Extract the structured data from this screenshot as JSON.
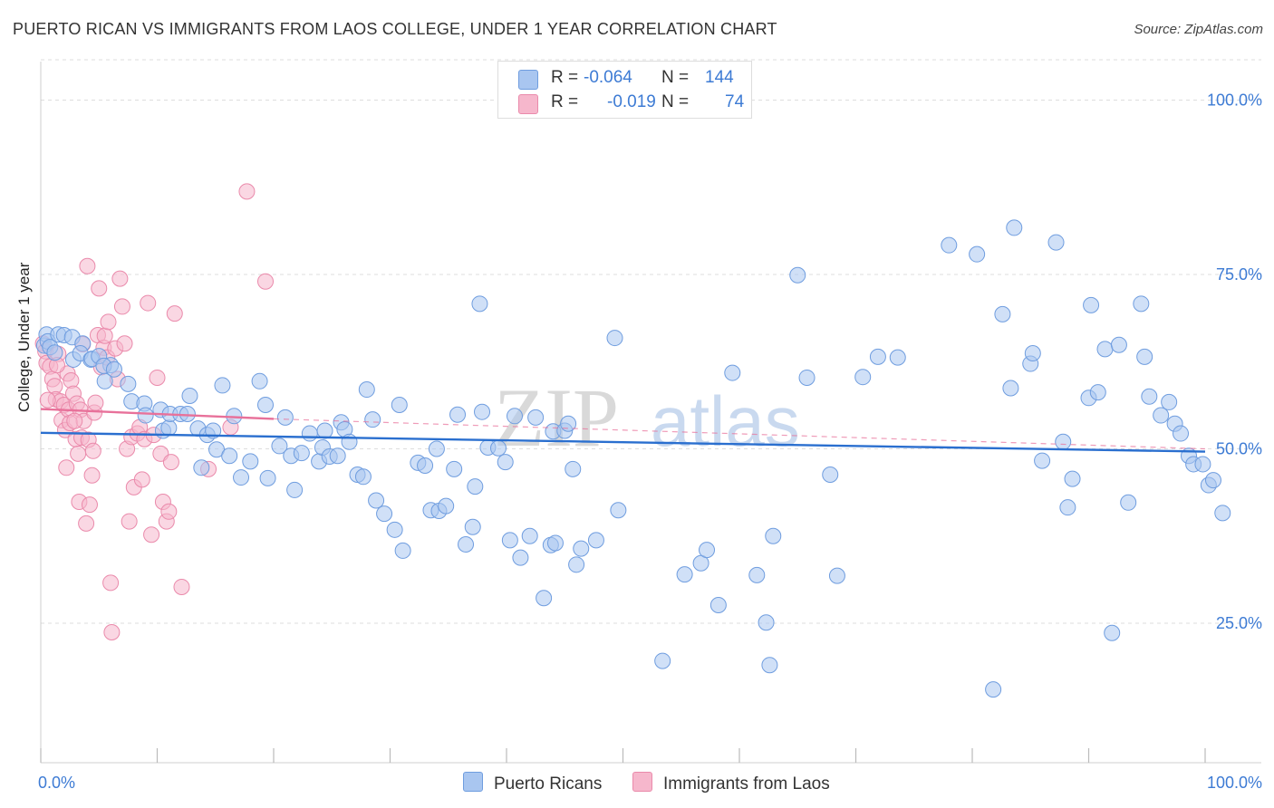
{
  "title": "PUERTO RICAN VS IMMIGRANTS FROM LAOS COLLEGE, UNDER 1 YEAR CORRELATION CHART",
  "source": "Source: ZipAtlas.com",
  "watermark": {
    "zip": "ZIP",
    "atlas": "atlas"
  },
  "legend": {
    "rows": [
      {
        "r_label": "R =",
        "r_value": "-0.064",
        "n_label": "N =",
        "n_value": "144"
      },
      {
        "r_label": "R =",
        "r_value": "-0.019",
        "n_label": "N =",
        "n_value": "74"
      }
    ]
  },
  "chart_data": {
    "type": "scatter",
    "title": "PUERTO RICAN VS IMMIGRANTS FROM LAOS COLLEGE, UNDER 1 YEAR CORRELATION CHART",
    "xlabel": "",
    "ylabel": "College, Under 1 year",
    "xlim": [
      0,
      100
    ],
    "ylim": [
      5,
      105
    ],
    "x_tick_labels": [
      "0.0%",
      "100.0%"
    ],
    "y_ticks": [
      25,
      50,
      75,
      100
    ],
    "y_tick_labels": [
      "25.0%",
      "50.0%",
      "75.0%",
      "100.0%"
    ],
    "colors": {
      "blue_fill": "#a9c6f0",
      "blue_stroke": "#6f9ddf",
      "blue_line": "#2a6fcf",
      "pink_fill": "#f6b7cc",
      "pink_stroke": "#ea8aab",
      "pink_line": "#e8719a",
      "tick_text": "#3d7bd4",
      "grid": "#dddddd"
    },
    "series": [
      {
        "name": "Puerto Ricans",
        "R": -0.064,
        "N": 144,
        "trend": {
          "x0": 0,
          "y0": 52.3,
          "x1": 100,
          "y1": 49.6
        },
        "points": [
          [
            0.3,
            64.8
          ],
          [
            0.5,
            66.4
          ],
          [
            0.6,
            65.4
          ],
          [
            0.8,
            64.6
          ],
          [
            1.2,
            63.8
          ],
          [
            1.5,
            66.4
          ],
          [
            2.0,
            66.3
          ],
          [
            2.7,
            66.0
          ],
          [
            3.6,
            65.1
          ],
          [
            2.8,
            62.8
          ],
          [
            3.4,
            63.7
          ],
          [
            4.3,
            62.8
          ],
          [
            4.4,
            62.9
          ],
          [
            5.0,
            63.3
          ],
          [
            6.0,
            62.0
          ],
          [
            5.4,
            61.9
          ],
          [
            6.3,
            61.4
          ],
          [
            5.5,
            59.7
          ],
          [
            7.5,
            59.3
          ],
          [
            7.8,
            56.8
          ],
          [
            8.9,
            56.5
          ],
          [
            9.0,
            54.8
          ],
          [
            10.3,
            55.6
          ],
          [
            10.5,
            52.6
          ],
          [
            11.0,
            53.0
          ],
          [
            11.1,
            55.0
          ],
          [
            12.0,
            55.0
          ],
          [
            12.6,
            55.0
          ],
          [
            12.8,
            57.6
          ],
          [
            13.5,
            52.9
          ],
          [
            13.8,
            47.3
          ],
          [
            14.3,
            52.0
          ],
          [
            14.8,
            52.6
          ],
          [
            15.1,
            49.9
          ],
          [
            15.6,
            59.1
          ],
          [
            16.2,
            49.0
          ],
          [
            16.6,
            54.7
          ],
          [
            17.2,
            45.9
          ],
          [
            18.0,
            48.2
          ],
          [
            18.8,
            59.7
          ],
          [
            19.3,
            56.3
          ],
          [
            19.5,
            45.8
          ],
          [
            20.5,
            50.4
          ],
          [
            21.0,
            54.5
          ],
          [
            21.5,
            49.0
          ],
          [
            21.8,
            44.1
          ],
          [
            22.4,
            49.4
          ],
          [
            23.1,
            52.2
          ],
          [
            23.9,
            48.2
          ],
          [
            24.2,
            50.2
          ],
          [
            24.4,
            52.6
          ],
          [
            24.8,
            48.9
          ],
          [
            25.5,
            49.0
          ],
          [
            25.8,
            53.8
          ],
          [
            26.1,
            52.8
          ],
          [
            26.5,
            51.0
          ],
          [
            27.2,
            46.3
          ],
          [
            27.7,
            46.0
          ],
          [
            28.0,
            58.5
          ],
          [
            28.5,
            54.2
          ],
          [
            28.8,
            42.6
          ],
          [
            29.5,
            40.7
          ],
          [
            30.4,
            38.4
          ],
          [
            30.8,
            56.3
          ],
          [
            31.1,
            35.4
          ],
          [
            32.4,
            48.0
          ],
          [
            33.0,
            47.6
          ],
          [
            33.5,
            41.2
          ],
          [
            34.0,
            50.0
          ],
          [
            34.2,
            41.1
          ],
          [
            34.8,
            41.8
          ],
          [
            35.5,
            47.1
          ],
          [
            35.8,
            54.9
          ],
          [
            36.5,
            36.3
          ],
          [
            37.1,
            38.8
          ],
          [
            37.3,
            44.6
          ],
          [
            37.7,
            70.8
          ],
          [
            37.9,
            55.3
          ],
          [
            38.4,
            50.2
          ],
          [
            39.3,
            50.1
          ],
          [
            39.9,
            48.1
          ],
          [
            40.3,
            36.9
          ],
          [
            40.7,
            54.7
          ],
          [
            41.2,
            34.4
          ],
          [
            42.0,
            37.5
          ],
          [
            42.5,
            54.5
          ],
          [
            43.2,
            28.6
          ],
          [
            44.0,
            52.5
          ],
          [
            43.8,
            36.2
          ],
          [
            44.2,
            36.5
          ],
          [
            45.0,
            52.6
          ],
          [
            45.3,
            53.6
          ],
          [
            45.7,
            47.1
          ],
          [
            46.0,
            33.4
          ],
          [
            46.4,
            35.7
          ],
          [
            47.7,
            36.9
          ],
          [
            49.6,
            41.2
          ],
          [
            49.3,
            65.9
          ],
          [
            53.4,
            19.6
          ],
          [
            55.3,
            32.0
          ],
          [
            56.7,
            33.6
          ],
          [
            57.2,
            35.5
          ],
          [
            58.2,
            27.6
          ],
          [
            59.4,
            60.9
          ],
          [
            61.5,
            31.9
          ],
          [
            62.3,
            25.1
          ],
          [
            62.6,
            19.0
          ],
          [
            62.9,
            37.5
          ],
          [
            65.0,
            74.9
          ],
          [
            65.8,
            60.2
          ],
          [
            67.8,
            46.3
          ],
          [
            68.4,
            31.8
          ],
          [
            70.6,
            60.3
          ],
          [
            71.9,
            63.2
          ],
          [
            73.6,
            63.1
          ],
          [
            78.0,
            79.2
          ],
          [
            80.4,
            77.9
          ],
          [
            81.8,
            15.5
          ],
          [
            82.6,
            69.3
          ],
          [
            83.3,
            58.7
          ],
          [
            83.6,
            81.7
          ],
          [
            85.0,
            62.2
          ],
          [
            85.2,
            63.7
          ],
          [
            86.0,
            48.3
          ],
          [
            87.2,
            79.6
          ],
          [
            87.8,
            51.0
          ],
          [
            88.2,
            41.6
          ],
          [
            88.6,
            45.7
          ],
          [
            90.0,
            57.3
          ],
          [
            90.2,
            70.6
          ],
          [
            90.8,
            58.1
          ],
          [
            91.4,
            64.3
          ],
          [
            92.6,
            64.9
          ],
          [
            92.0,
            23.6
          ],
          [
            93.4,
            42.3
          ],
          [
            94.5,
            70.8
          ],
          [
            94.8,
            63.2
          ],
          [
            95.2,
            57.5
          ],
          [
            96.2,
            54.8
          ],
          [
            96.9,
            56.7
          ],
          [
            97.4,
            53.6
          ],
          [
            97.9,
            52.2
          ],
          [
            98.6,
            49.0
          ],
          [
            99.0,
            47.8
          ],
          [
            99.8,
            47.8
          ],
          [
            100.3,
            44.8
          ],
          [
            100.7,
            45.5
          ],
          [
            101.5,
            40.8
          ]
        ]
      },
      {
        "name": "Immigrants from Laos",
        "R": -0.019,
        "N": 74,
        "trend": {
          "x0": 0,
          "y0": 55.7,
          "x1": 20,
          "y1": 54.3
        },
        "trend_extension": {
          "x0": 20,
          "y0": 54.3,
          "x1": 100,
          "y1": 50.0
        },
        "points": [
          [
            0.2,
            65.1
          ],
          [
            0.4,
            64.0
          ],
          [
            0.5,
            62.3
          ],
          [
            0.8,
            61.8
          ],
          [
            1.0,
            60.0
          ],
          [
            1.2,
            59.0
          ],
          [
            1.3,
            57.1
          ],
          [
            1.5,
            63.6
          ],
          [
            1.7,
            56.8
          ],
          [
            1.8,
            54.1
          ],
          [
            2.0,
            56.3
          ],
          [
            2.1,
            52.7
          ],
          [
            2.2,
            47.3
          ],
          [
            2.3,
            60.8
          ],
          [
            2.4,
            55.6
          ],
          [
            2.5,
            53.7
          ],
          [
            2.6,
            59.8
          ],
          [
            2.8,
            57.9
          ],
          [
            3.0,
            51.4
          ],
          [
            3.1,
            56.5
          ],
          [
            3.2,
            49.3
          ],
          [
            3.3,
            42.4
          ],
          [
            3.4,
            55.6
          ],
          [
            3.5,
            51.6
          ],
          [
            3.7,
            54.0
          ],
          [
            3.9,
            39.3
          ],
          [
            4.0,
            76.2
          ],
          [
            4.1,
            51.3
          ],
          [
            4.2,
            42.0
          ],
          [
            4.4,
            46.2
          ],
          [
            4.5,
            49.7
          ],
          [
            4.6,
            55.2
          ],
          [
            4.7,
            56.6
          ],
          [
            4.9,
            66.3
          ],
          [
            5.0,
            73.0
          ],
          [
            5.2,
            61.7
          ],
          [
            5.4,
            64.5
          ],
          [
            5.5,
            66.2
          ],
          [
            5.7,
            63.1
          ],
          [
            5.8,
            68.2
          ],
          [
            6.0,
            30.8
          ],
          [
            6.1,
            23.7
          ],
          [
            6.4,
            64.4
          ],
          [
            6.8,
            74.4
          ],
          [
            7.0,
            70.4
          ],
          [
            7.2,
            65.1
          ],
          [
            7.4,
            50.0
          ],
          [
            7.6,
            39.6
          ],
          [
            7.8,
            51.7
          ],
          [
            8.0,
            44.5
          ],
          [
            8.3,
            52.2
          ],
          [
            8.5,
            53.1
          ],
          [
            8.7,
            45.6
          ],
          [
            8.9,
            51.4
          ],
          [
            9.2,
            70.9
          ],
          [
            9.5,
            37.7
          ],
          [
            9.7,
            52.0
          ],
          [
            10.0,
            60.2
          ],
          [
            10.3,
            49.3
          ],
          [
            10.5,
            42.4
          ],
          [
            10.8,
            39.6
          ],
          [
            11.0,
            41.0
          ],
          [
            11.2,
            48.1
          ],
          [
            11.5,
            69.4
          ],
          [
            12.1,
            30.2
          ],
          [
            14.4,
            47.1
          ],
          [
            16.3,
            53.1
          ],
          [
            17.7,
            86.9
          ],
          [
            19.3,
            74.0
          ],
          [
            0.6,
            57.0
          ],
          [
            1.4,
            62.0
          ],
          [
            2.9,
            54.0
          ],
          [
            3.6,
            65.0
          ],
          [
            6.6,
            60.0
          ]
        ]
      }
    ]
  }
}
